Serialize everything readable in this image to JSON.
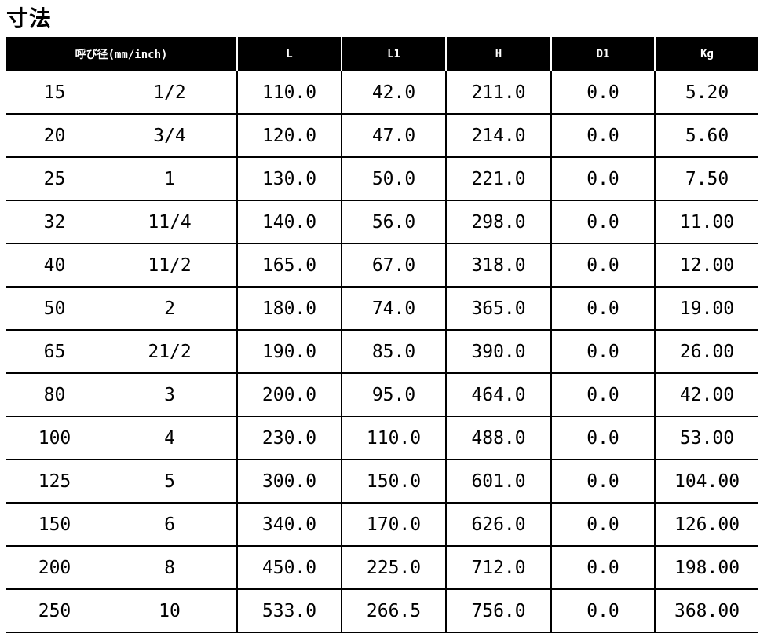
{
  "title": "寸法",
  "headers": {
    "nominal_jp": "呼び径",
    "nominal_unit": "(mm/inch)",
    "L": "L",
    "L1": "L1",
    "H": "H",
    "D1": "D1",
    "Kg": "Kg"
  },
  "rows": [
    {
      "mm": "15",
      "inch": "1/2",
      "L": "110.0",
      "L1": "42.0",
      "H": "211.0",
      "D1": "0.0",
      "Kg": "5.20"
    },
    {
      "mm": "20",
      "inch": "3/4",
      "L": "120.0",
      "L1": "47.0",
      "H": "214.0",
      "D1": "0.0",
      "Kg": "5.60"
    },
    {
      "mm": "25",
      "inch": "1",
      "L": "130.0",
      "L1": "50.0",
      "H": "221.0",
      "D1": "0.0",
      "Kg": "7.50"
    },
    {
      "mm": "32",
      "inch": "11/4",
      "L": "140.0",
      "L1": "56.0",
      "H": "298.0",
      "D1": "0.0",
      "Kg": "11.00"
    },
    {
      "mm": "40",
      "inch": "11/2",
      "L": "165.0",
      "L1": "67.0",
      "H": "318.0",
      "D1": "0.0",
      "Kg": "12.00"
    },
    {
      "mm": "50",
      "inch": "2",
      "L": "180.0",
      "L1": "74.0",
      "H": "365.0",
      "D1": "0.0",
      "Kg": "19.00"
    },
    {
      "mm": "65",
      "inch": "21/2",
      "L": "190.0",
      "L1": "85.0",
      "H": "390.0",
      "D1": "0.0",
      "Kg": "26.00"
    },
    {
      "mm": "80",
      "inch": "3",
      "L": "200.0",
      "L1": "95.0",
      "H": "464.0",
      "D1": "0.0",
      "Kg": "42.00"
    },
    {
      "mm": "100",
      "inch": "4",
      "L": "230.0",
      "L1": "110.0",
      "H": "488.0",
      "D1": "0.0",
      "Kg": "53.00"
    },
    {
      "mm": "125",
      "inch": "5",
      "L": "300.0",
      "L1": "150.0",
      "H": "601.0",
      "D1": "0.0",
      "Kg": "104.00"
    },
    {
      "mm": "150",
      "inch": "6",
      "L": "340.0",
      "L1": "170.0",
      "H": "626.0",
      "D1": "0.0",
      "Kg": "126.00"
    },
    {
      "mm": "200",
      "inch": "8",
      "L": "450.0",
      "L1": "225.0",
      "H": "712.0",
      "D1": "0.0",
      "Kg": "198.00"
    },
    {
      "mm": "250",
      "inch": "10",
      "L": "533.0",
      "L1": "266.5",
      "H": "756.0",
      "D1": "0.0",
      "Kg": "368.00"
    }
  ]
}
